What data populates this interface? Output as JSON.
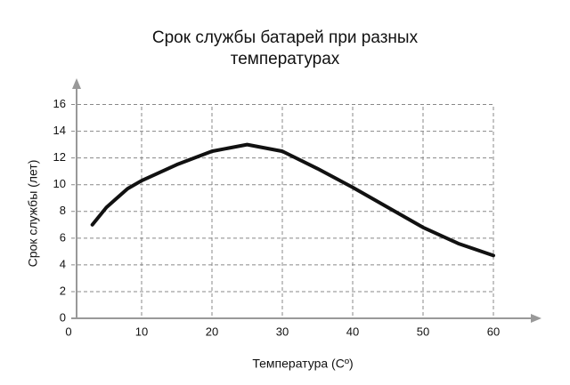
{
  "chart_data": {
    "type": "line",
    "title": "Срок службы батарей при разных температурах",
    "title_lines": [
      "Срок службы батарей при разных",
      "температурах"
    ],
    "x_label": "Температура (Cº)",
    "y_label": "Срок службы (лет)",
    "x": [
      3,
      5,
      8,
      10,
      15,
      20,
      25,
      30,
      35,
      40,
      45,
      50,
      55,
      60
    ],
    "series": [
      {
        "name": "Срок службы",
        "color": "#111111",
        "values": [
          7,
          8.3,
          9.7,
          10.3,
          11.5,
          12.5,
          13,
          12.5,
          11.2,
          9.8,
          8.3,
          6.8,
          5.6,
          4.7
        ]
      }
    ],
    "xlim": [
      0,
      66
    ],
    "ylim": [
      0,
      16.5
    ],
    "xticks": [
      0,
      10,
      20,
      30,
      40,
      50,
      60
    ],
    "yticks": [
      0,
      2,
      4,
      6,
      8,
      10,
      12,
      14,
      16
    ],
    "grid": true
  }
}
